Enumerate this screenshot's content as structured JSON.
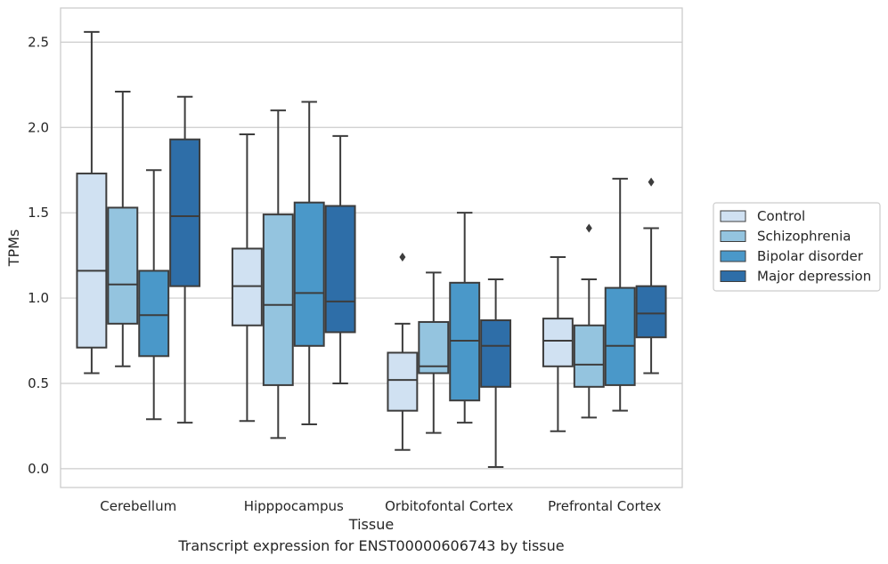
{
  "caption": "Transcript expression for ENST00000606743 by tissue",
  "chart_data": {
    "type": "boxplot",
    "xlabel": "Tissue",
    "ylabel": "TPMs",
    "ylim": [
      -0.11,
      2.7
    ],
    "yticks": [
      "0.0",
      "0.5",
      "1.0",
      "1.5",
      "2.0",
      "2.5"
    ],
    "grid": "horizontal",
    "legend_position": "right",
    "categories": [
      "Cerebellum",
      "Hipppocampus",
      "Orbitofontal Cortex",
      "Prefrontal Cortex"
    ],
    "series": [
      {
        "name": "Control",
        "color": "#d0e1f2",
        "boxes": [
          {
            "whislo": 0.56,
            "q1": 0.71,
            "med": 1.16,
            "q3": 1.73,
            "whishi": 2.56,
            "fliers": []
          },
          {
            "whislo": 0.28,
            "q1": 0.84,
            "med": 1.07,
            "q3": 1.29,
            "whishi": 1.96,
            "fliers": []
          },
          {
            "whislo": 0.11,
            "q1": 0.34,
            "med": 0.52,
            "q3": 0.68,
            "whishi": 0.85,
            "fliers": [
              1.24
            ]
          },
          {
            "whislo": 0.22,
            "q1": 0.6,
            "med": 0.75,
            "q3": 0.88,
            "whishi": 1.24,
            "fliers": []
          }
        ]
      },
      {
        "name": "Schizophrenia",
        "color": "#94c4df",
        "boxes": [
          {
            "whislo": 0.6,
            "q1": 0.85,
            "med": 1.08,
            "q3": 1.53,
            "whishi": 2.21,
            "fliers": []
          },
          {
            "whislo": 0.18,
            "q1": 0.49,
            "med": 0.96,
            "q3": 1.49,
            "whishi": 2.1,
            "fliers": []
          },
          {
            "whislo": 0.21,
            "q1": 0.56,
            "med": 0.6,
            "q3": 0.86,
            "whishi": 1.15,
            "fliers": []
          },
          {
            "whislo": 0.3,
            "q1": 0.48,
            "med": 0.61,
            "q3": 0.84,
            "whishi": 1.11,
            "fliers": [
              1.41
            ]
          }
        ]
      },
      {
        "name": "Bipolar disorder",
        "color": "#4a98c9",
        "boxes": [
          {
            "whislo": 0.29,
            "q1": 0.66,
            "med": 0.9,
            "q3": 1.16,
            "whishi": 1.75,
            "fliers": []
          },
          {
            "whislo": 0.26,
            "q1": 0.72,
            "med": 1.03,
            "q3": 1.56,
            "whishi": 2.15,
            "fliers": []
          },
          {
            "whislo": 0.27,
            "q1": 0.4,
            "med": 0.75,
            "q3": 1.09,
            "whishi": 1.5,
            "fliers": []
          },
          {
            "whislo": 0.34,
            "q1": 0.49,
            "med": 0.72,
            "q3": 1.06,
            "whishi": 1.7,
            "fliers": []
          }
        ]
      },
      {
        "name": "Major depression",
        "color": "#2e6ea8",
        "boxes": [
          {
            "whislo": 0.27,
            "q1": 1.07,
            "med": 1.48,
            "q3": 1.93,
            "whishi": 2.18,
            "fliers": []
          },
          {
            "whislo": 0.5,
            "q1": 0.8,
            "med": 0.98,
            "q3": 1.54,
            "whishi": 1.95,
            "fliers": []
          },
          {
            "whislo": 0.01,
            "q1": 0.48,
            "med": 0.72,
            "q3": 0.87,
            "whishi": 1.11,
            "fliers": []
          },
          {
            "whislo": 0.56,
            "q1": 0.77,
            "med": 0.91,
            "q3": 1.07,
            "whishi": 1.41,
            "fliers": [
              1.68
            ]
          }
        ]
      }
    ]
  }
}
